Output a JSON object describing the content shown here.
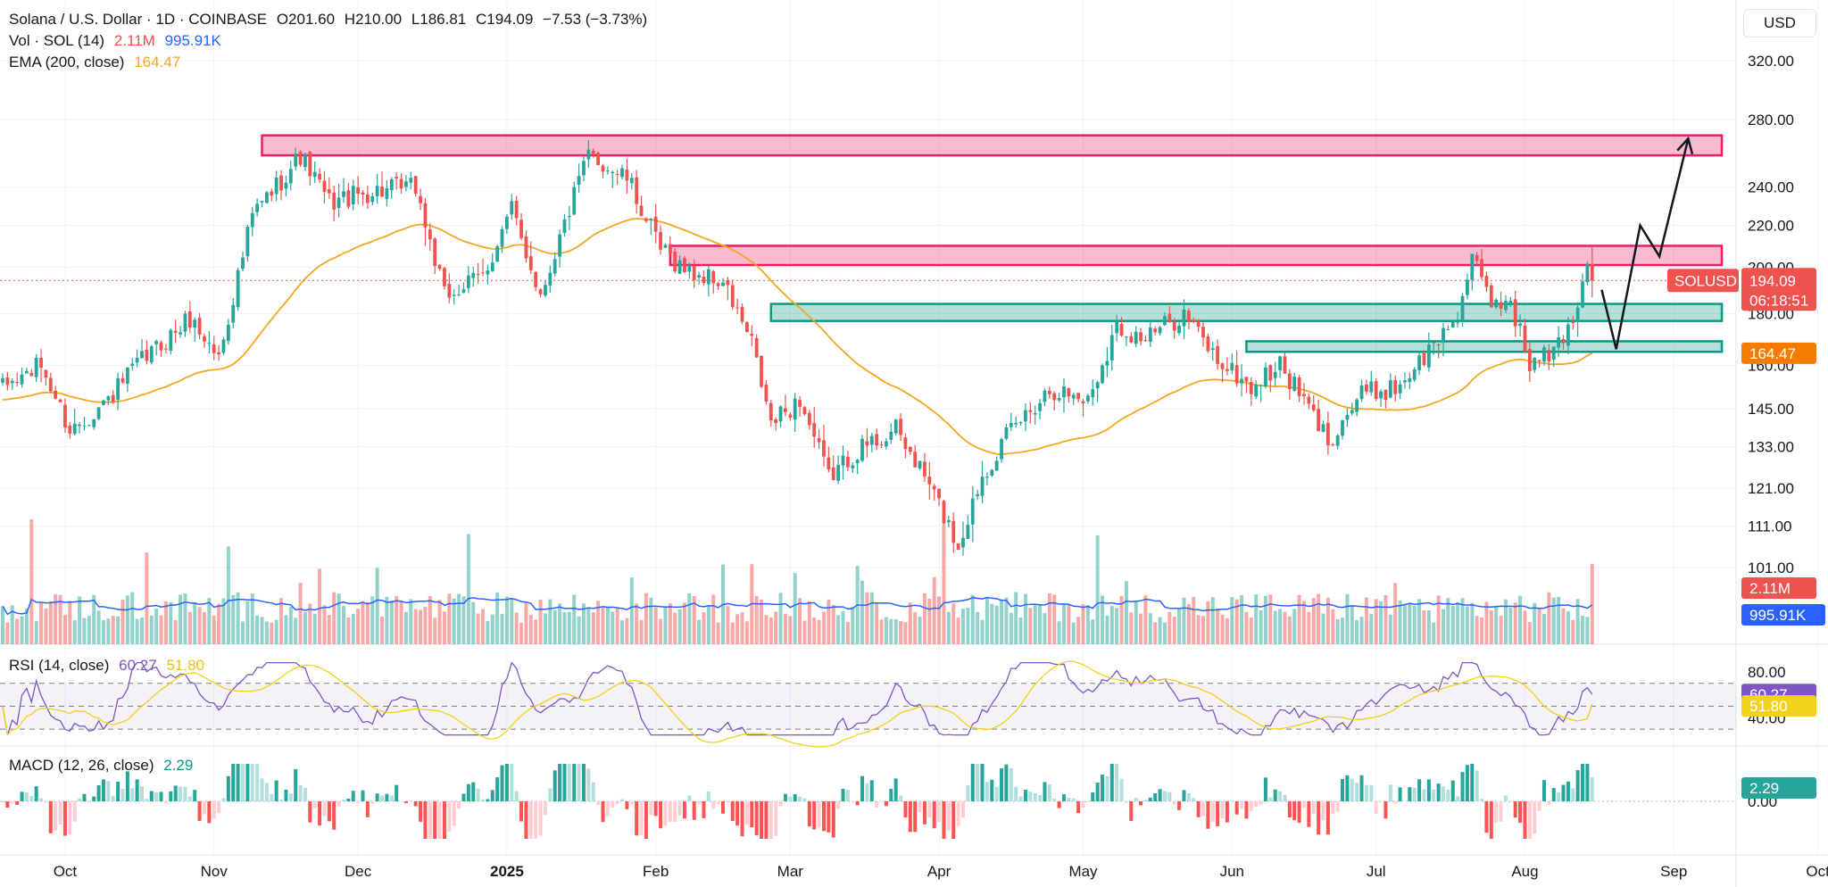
{
  "currency_button": "USD",
  "legend": {
    "symbol": "Solana / U.S. Dollar · 1D · COINBASE",
    "open": "O201.60",
    "high": "H210.00",
    "low": "L186.81",
    "close": "C194.09",
    "change": "−7.53 (−3.73%)",
    "vol_label": "Vol · SOL (14)",
    "vol_value": "2.11M",
    "vol_ma_value": "995.91K",
    "ema_label": "EMA (200, close)",
    "ema_value": "164.47",
    "rsi_label": "RSI (14, close)",
    "rsi_value": "60.27",
    "rsi_ma_value": "51.80",
    "macd_label": "MACD (12, 26, close)",
    "macd_value": "2.29"
  },
  "colors": {
    "up": "#26a69a",
    "down": "#ef5350",
    "ema": "#f5a623",
    "vol_ma": "#2962ff",
    "rsi": "#7e57c2",
    "rsi_ma": "#f2d21b",
    "resistance": "#e91e63",
    "support": "#089981"
  },
  "chart_data": {
    "type": "candlestick",
    "title": "Solana / U.S. Dollar · 1D · COINBASE",
    "x_ticks": [
      {
        "label": "Oct",
        "bold": false,
        "i": 13
      },
      {
        "label": "Nov",
        "bold": false,
        "i": 44
      },
      {
        "label": "Dec",
        "bold": false,
        "i": 74
      },
      {
        "label": "2025",
        "bold": true,
        "i": 105
      },
      {
        "label": "Feb",
        "bold": false,
        "i": 136
      },
      {
        "label": "Mar",
        "bold": false,
        "i": 164
      },
      {
        "label": "Apr",
        "bold": false,
        "i": 195
      },
      {
        "label": "May",
        "bold": false,
        "i": 225
      },
      {
        "label": "Jun",
        "bold": false,
        "i": 256
      },
      {
        "label": "Jul",
        "bold": false,
        "i": 286
      },
      {
        "label": "Aug",
        "bold": false,
        "i": 317
      },
      {
        "label": "Sep",
        "bold": false,
        "i": 348
      },
      {
        "label": "Oct",
        "bold": false,
        "i": 378
      }
    ],
    "total_slots": 400,
    "y_ticks": [
      "320.00",
      "280.00",
      "240.00",
      "220.00",
      "200.00",
      "180.00",
      "160.00",
      "145.00",
      "133.00",
      "121.00",
      "111.00",
      "101.00"
    ],
    "y_scale": "log",
    "price_anchors": [
      {
        "date_index": 0,
        "price": 152
      },
      {
        "date_index": 8,
        "price": 160
      },
      {
        "date_index": 14,
        "price": 138
      },
      {
        "date_index": 22,
        "price": 148
      },
      {
        "date_index": 28,
        "price": 160
      },
      {
        "date_index": 39,
        "price": 178
      },
      {
        "date_index": 45,
        "price": 163
      },
      {
        "date_index": 52,
        "price": 225
      },
      {
        "date_index": 62,
        "price": 258
      },
      {
        "date_index": 68,
        "price": 232
      },
      {
        "date_index": 78,
        "price": 238
      },
      {
        "date_index": 86,
        "price": 240
      },
      {
        "date_index": 92,
        "price": 187
      },
      {
        "date_index": 100,
        "price": 196
      },
      {
        "date_index": 106,
        "price": 228
      },
      {
        "date_index": 112,
        "price": 188
      },
      {
        "date_index": 118,
        "price": 228
      },
      {
        "date_index": 122,
        "price": 258
      },
      {
        "date_index": 130,
        "price": 245
      },
      {
        "date_index": 137,
        "price": 208
      },
      {
        "date_index": 143,
        "price": 198
      },
      {
        "date_index": 150,
        "price": 193
      },
      {
        "date_index": 156,
        "price": 168
      },
      {
        "date_index": 160,
        "price": 140
      },
      {
        "date_index": 166,
        "price": 148
      },
      {
        "date_index": 172,
        "price": 124
      },
      {
        "date_index": 178,
        "price": 132
      },
      {
        "date_index": 186,
        "price": 138
      },
      {
        "date_index": 193,
        "price": 122
      },
      {
        "date_index": 199,
        "price": 106
      },
      {
        "date_index": 204,
        "price": 125
      },
      {
        "date_index": 210,
        "price": 138
      },
      {
        "date_index": 218,
        "price": 152
      },
      {
        "date_index": 226,
        "price": 148
      },
      {
        "date_index": 232,
        "price": 175
      },
      {
        "date_index": 238,
        "price": 170
      },
      {
        "date_index": 246,
        "price": 180
      },
      {
        "date_index": 253,
        "price": 162
      },
      {
        "date_index": 260,
        "price": 152
      },
      {
        "date_index": 266,
        "price": 160
      },
      {
        "date_index": 272,
        "price": 145
      },
      {
        "date_index": 276,
        "price": 135
      },
      {
        "date_index": 283,
        "price": 150
      },
      {
        "date_index": 290,
        "price": 152
      },
      {
        "date_index": 297,
        "price": 165
      },
      {
        "date_index": 303,
        "price": 180
      },
      {
        "date_index": 306,
        "price": 203
      },
      {
        "date_index": 310,
        "price": 184
      },
      {
        "date_index": 314,
        "price": 186
      },
      {
        "date_index": 318,
        "price": 160
      },
      {
        "date_index": 323,
        "price": 165
      },
      {
        "date_index": 327,
        "price": 178
      },
      {
        "date_index": 330,
        "price": 201.6
      },
      {
        "date_index": 331,
        "price": 194.09
      }
    ],
    "last_candle": {
      "open": 201.6,
      "high": 210.0,
      "low": 186.81,
      "close": 194.09
    },
    "ema_200_last": 164.47,
    "current_price": 194.09,
    "countdown": "06:18:51",
    "symbol_tag": "SOLUSD",
    "zones": [
      {
        "name": "upper-resistance",
        "type": "resistance",
        "price_low": 258,
        "price_high": 270,
        "start_index": 54,
        "end_index": 358
      },
      {
        "name": "mid-resistance",
        "type": "resistance",
        "price_low": 201,
        "price_high": 210,
        "start_index": 139,
        "end_index": 358
      },
      {
        "name": "upper-support",
        "type": "support",
        "price_low": 177,
        "price_high": 184,
        "start_index": 160,
        "end_index": 358
      },
      {
        "name": "lower-support",
        "type": "support",
        "price_low": 165,
        "price_high": 169,
        "start_index": 259,
        "end_index": 358
      }
    ],
    "projection_path": [
      {
        "i": 333,
        "price": 190
      },
      {
        "i": 336,
        "price": 166
      },
      {
        "i": 341,
        "price": 220
      },
      {
        "i": 345,
        "price": 205
      },
      {
        "i": 351,
        "price": 268
      }
    ],
    "volume": {
      "label": "Vol · SOL (14)",
      "last": "2.11M",
      "ma_last": "995.91K"
    },
    "rsi": {
      "label": "RSI (14, close)",
      "axis_ticks": [
        "80.00",
        "40.00"
      ],
      "last": 60.27,
      "ma_last": 51.8,
      "upper_band": 70,
      "mid_band": 50,
      "lower_band": 30
    },
    "macd": {
      "label": "MACD (12, 26, close)",
      "axis_ticks": [
        "0.00"
      ],
      "last": 2.29
    },
    "axis_tags": {
      "price": "194.09",
      "ema": "164.47",
      "vol": "2.11M",
      "vol_ma": "995.91K",
      "rsi": "60.27",
      "rsi_ma": "51.80",
      "macd": "2.29"
    }
  }
}
